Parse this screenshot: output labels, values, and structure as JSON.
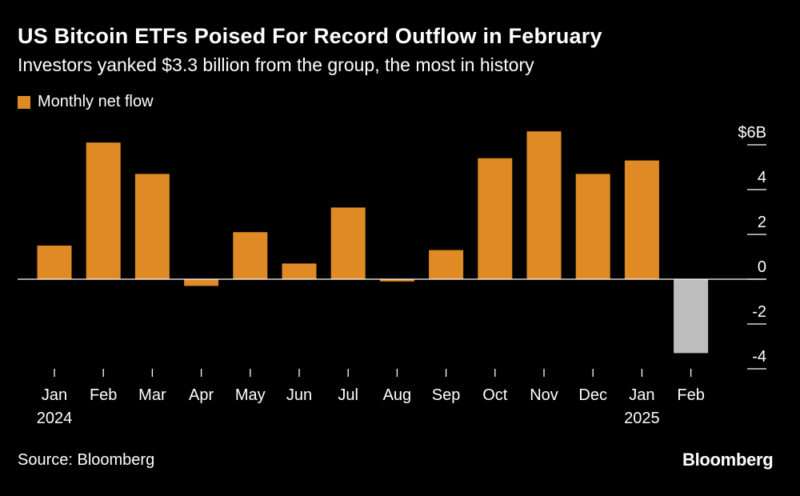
{
  "title": "US Bitcoin ETFs Poised For Record Outflow in February",
  "subtitle": "Investors yanked $3.3 billion from the group, the most in history",
  "legend_label": "Monthly net flow",
  "source": "Source: Bloomberg",
  "brand": "Bloomberg",
  "colors": {
    "background": "#000000",
    "bar_positive": "#e08a26",
    "bar_highlight": "#bdbdbd",
    "text": "#ffffff"
  },
  "chart_data": {
    "type": "bar",
    "title": "US Bitcoin ETFs Poised For Record Outflow in February",
    "series": [
      {
        "name": "Monthly net flow",
        "values": [
          1.5,
          6.1,
          4.7,
          -0.3,
          2.1,
          0.7,
          3.2,
          -0.1,
          1.3,
          5.4,
          6.6,
          4.7,
          5.3,
          -3.3
        ]
      }
    ],
    "categories": [
      "Jan",
      "Feb",
      "Mar",
      "Apr",
      "May",
      "Jun",
      "Jul",
      "Aug",
      "Sep",
      "Oct",
      "Nov",
      "Dec",
      "Jan",
      "Feb"
    ],
    "year_labels": [
      {
        "index": 0,
        "label": "2024"
      },
      {
        "index": 12,
        "label": "2025"
      }
    ],
    "highlight_index": 13,
    "ylim": [
      -4,
      6
    ],
    "yticks": [
      6,
      4,
      2,
      0,
      -2,
      -4
    ],
    "ytick_labels": [
      "$6B",
      "4",
      "2",
      "0",
      "-2",
      "-4"
    ],
    "y_axis_position": "right",
    "xlabel": "",
    "ylabel": ""
  }
}
